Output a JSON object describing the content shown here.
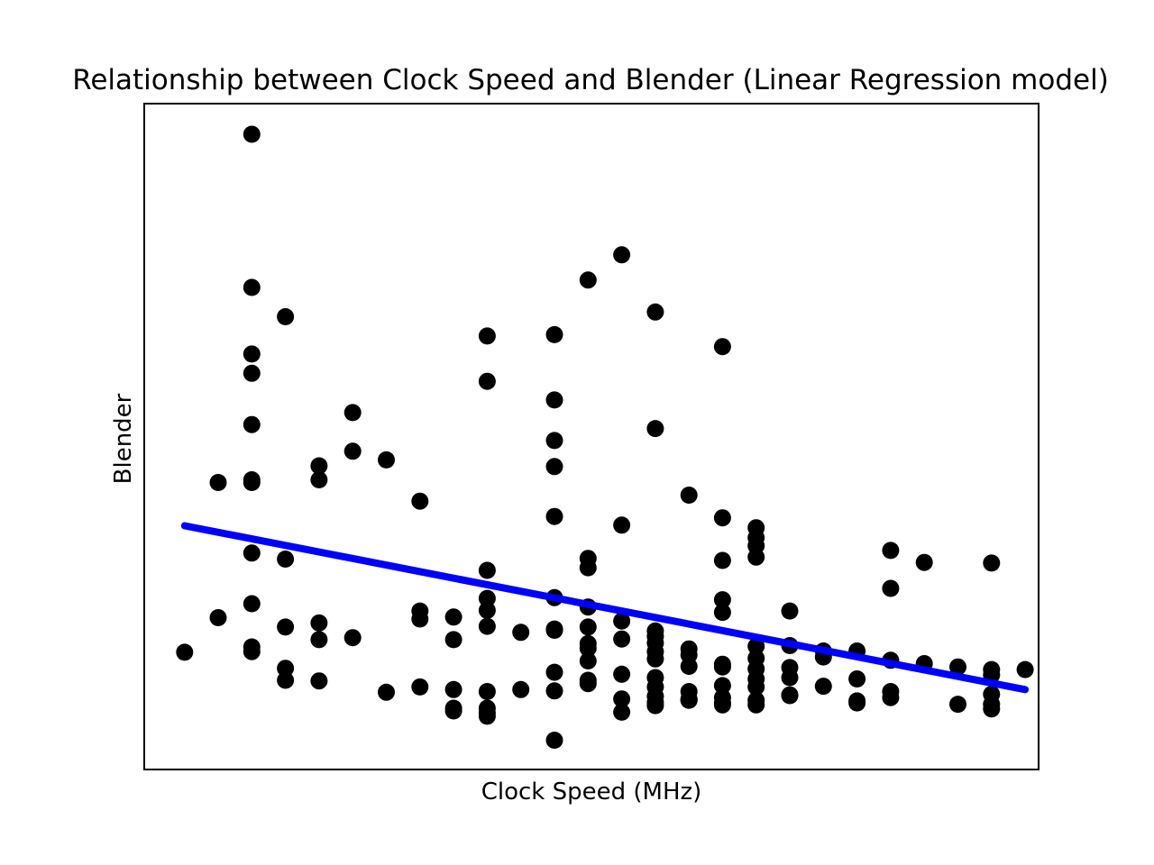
{
  "chart_data": {
    "type": "scatter",
    "title": "Relationship between Clock Speed and Blender (Linear Regression model)",
    "xlabel": "Clock Speed (MHz)",
    "ylabel": "Blender",
    "xlim": [
      -0.2,
      26.4
    ],
    "ylim": [
      0,
      1000
    ],
    "grid": false,
    "ticks_visible": false,
    "colors": {
      "points": "#000000",
      "regression_line": "#0000ff"
    },
    "series": [
      {
        "type": "scatter",
        "points": [
          [
            1,
            176
          ],
          [
            2,
            228
          ],
          [
            2,
            431
          ],
          [
            3,
            954
          ],
          [
            3,
            724
          ],
          [
            3,
            624
          ],
          [
            3,
            595
          ],
          [
            3,
            518
          ],
          [
            3,
            435
          ],
          [
            3,
            431
          ],
          [
            3,
            325
          ],
          [
            3,
            249
          ],
          [
            3,
            184
          ],
          [
            3,
            177
          ],
          [
            4,
            680
          ],
          [
            4,
            316
          ],
          [
            4,
            214
          ],
          [
            4,
            152
          ],
          [
            4,
            134
          ],
          [
            5,
            456
          ],
          [
            5,
            435
          ],
          [
            5,
            220
          ],
          [
            5,
            195
          ],
          [
            5,
            133
          ],
          [
            6,
            536
          ],
          [
            6,
            478
          ],
          [
            6,
            198
          ],
          [
            7,
            465
          ],
          [
            7,
            116
          ],
          [
            8,
            403
          ],
          [
            8,
            238
          ],
          [
            8,
            226
          ],
          [
            8,
            124
          ],
          [
            9,
            229
          ],
          [
            9,
            195
          ],
          [
            9,
            120
          ],
          [
            9,
            92
          ],
          [
            9,
            88
          ],
          [
            10,
            651
          ],
          [
            10,
            583
          ],
          [
            10,
            299
          ],
          [
            10,
            257
          ],
          [
            10,
            239
          ],
          [
            10,
            215
          ],
          [
            10,
            117
          ],
          [
            10,
            92
          ],
          [
            10,
            85
          ],
          [
            10,
            80
          ],
          [
            11,
            206
          ],
          [
            11,
            120
          ],
          [
            12,
            653
          ],
          [
            12,
            555
          ],
          [
            12,
            494
          ],
          [
            12,
            455
          ],
          [
            12,
            380
          ],
          [
            12,
            258
          ],
          [
            12,
            211
          ],
          [
            12,
            209
          ],
          [
            12,
            146
          ],
          [
            12,
            118
          ],
          [
            12,
            44
          ],
          [
            13,
            735
          ],
          [
            13,
            317
          ],
          [
            13,
            303
          ],
          [
            13,
            244
          ],
          [
            13,
            214
          ],
          [
            13,
            189
          ],
          [
            13,
            182
          ],
          [
            13,
            163
          ],
          [
            13,
            134
          ],
          [
            13,
            129
          ],
          [
            14,
            773
          ],
          [
            14,
            367
          ],
          [
            14,
            223
          ],
          [
            14,
            196
          ],
          [
            14,
            143
          ],
          [
            14,
            106
          ],
          [
            14,
            86
          ],
          [
            15,
            687
          ],
          [
            15,
            512
          ],
          [
            15,
            208
          ],
          [
            15,
            200
          ],
          [
            15,
            190
          ],
          [
            15,
            177
          ],
          [
            15,
            166
          ],
          [
            15,
            138
          ],
          [
            15,
            124
          ],
          [
            15,
            110
          ],
          [
            15,
            101
          ],
          [
            15,
            96
          ],
          [
            16,
            412
          ],
          [
            16,
            181
          ],
          [
            16,
            172
          ],
          [
            16,
            155
          ],
          [
            16,
            117
          ],
          [
            16,
            106
          ],
          [
            16,
            104
          ],
          [
            16,
            104
          ],
          [
            17,
            635
          ],
          [
            17,
            378
          ],
          [
            17,
            314
          ],
          [
            17,
            255
          ],
          [
            17,
            236
          ],
          [
            17,
            158
          ],
          [
            17,
            154
          ],
          [
            17,
            126
          ],
          [
            17,
            108
          ],
          [
            17,
            100
          ],
          [
            17,
            97
          ],
          [
            18,
            363
          ],
          [
            18,
            348
          ],
          [
            18,
            336
          ],
          [
            18,
            319
          ],
          [
            18,
            185
          ],
          [
            18,
            167
          ],
          [
            18,
            151
          ],
          [
            18,
            136
          ],
          [
            18,
            124
          ],
          [
            18,
            104
          ],
          [
            18,
            97
          ],
          [
            19,
            238
          ],
          [
            19,
            186
          ],
          [
            19,
            153
          ],
          [
            19,
            138
          ],
          [
            19,
            111
          ],
          [
            19,
            112
          ],
          [
            20,
            178
          ],
          [
            20,
            169
          ],
          [
            20,
            125
          ],
          [
            21,
            178
          ],
          [
            21,
            136
          ],
          [
            21,
            103
          ],
          [
            21,
            100
          ],
          [
            22,
            329
          ],
          [
            22,
            272
          ],
          [
            22,
            164
          ],
          [
            22,
            117
          ],
          [
            22,
            108
          ],
          [
            23,
            311
          ],
          [
            23,
            159
          ],
          [
            24,
            154
          ],
          [
            24,
            98
          ],
          [
            25,
            310
          ],
          [
            25,
            150
          ],
          [
            25,
            142
          ],
          [
            25,
            113
          ],
          [
            25,
            98
          ],
          [
            25,
            91
          ],
          [
            26,
            150
          ]
        ]
      },
      {
        "type": "line",
        "points": [
          [
            1,
            366
          ],
          [
            26,
            120
          ]
        ]
      }
    ]
  }
}
